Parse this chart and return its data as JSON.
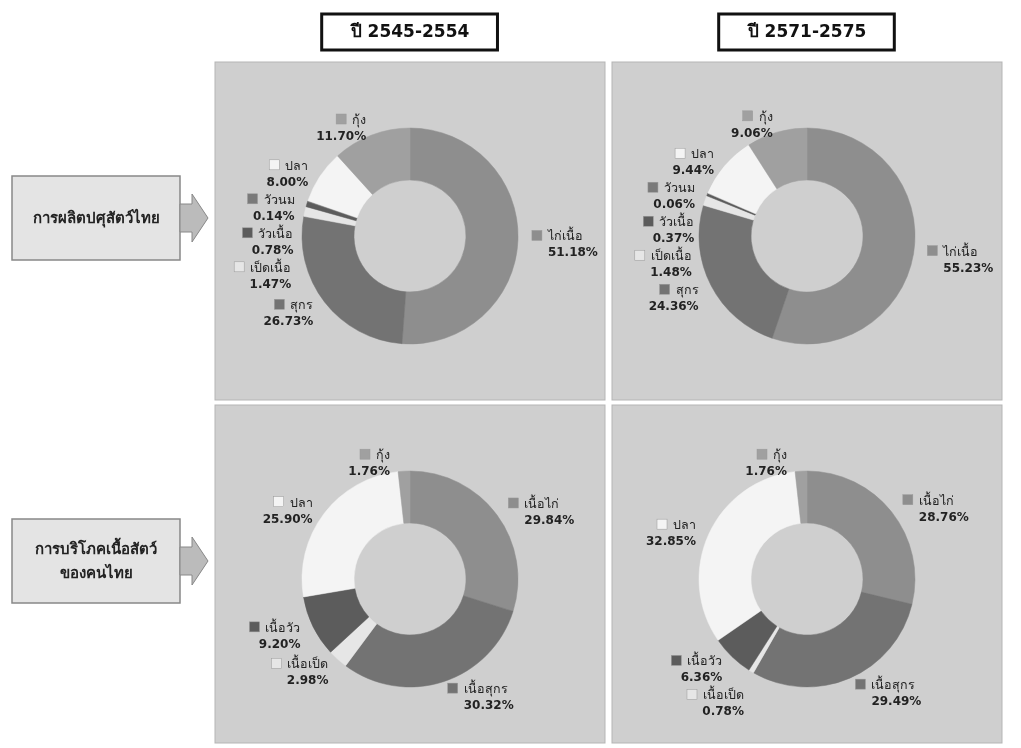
{
  "chart_data": [
    {
      "type": "donut",
      "title": "ปี 2545-2554",
      "ylabel": "การผลิตปศุสัตว์ไทย",
      "categories": [
        "ไก่เนื้อ",
        "สุกร",
        "เป็ดเนื้อ",
        "วัวเนื้อ",
        "วัวนม",
        "ปลา",
        "กุ้ง"
      ],
      "values": [
        51.18,
        26.73,
        1.47,
        0.78,
        0.14,
        8.0,
        11.7
      ],
      "colors": [
        "#8e8e8e",
        "#737373",
        "#e6e6e6",
        "#5c5c5c",
        "#7a7a7a",
        "#f4f4f4",
        "#a0a0a0"
      ],
      "legend": "left",
      "value_labels": [
        "51.18%",
        "26.73%",
        "1.47%",
        "0.78%",
        "0.14%",
        "8.00%",
        "11.70%"
      ]
    },
    {
      "type": "donut",
      "title": "ปี 2571-2575",
      "categories": [
        "ไก่เนื้อ",
        "สุกร",
        "เป็ดเนื้อ",
        "วัวเนื้อ",
        "วัวนม",
        "ปลา",
        "กุ้ง"
      ],
      "values": [
        55.23,
        24.36,
        1.48,
        0.37,
        0.06,
        9.44,
        9.06
      ],
      "colors": [
        "#8e8e8e",
        "#737373",
        "#e6e6e6",
        "#5c5c5c",
        "#7a7a7a",
        "#f4f4f4",
        "#a0a0a0"
      ],
      "legend": "left",
      "value_labels": [
        "55.23%",
        "24.36%",
        "1.48%",
        "0.37%",
        "0.06%",
        "9.44%",
        "9.06%"
      ]
    },
    {
      "type": "donut",
      "ylabel": "การบริโภคเนื้อสัตว์ของคนไทย",
      "categories": [
        "เนื้อไก่",
        "เนื้อสุกร",
        "เนื้อเป็ด",
        "เนื้อวัว",
        "ปลา",
        "กุ้ง"
      ],
      "values": [
        29.84,
        30.32,
        2.98,
        9.2,
        25.9,
        1.76
      ],
      "colors": [
        "#8e8e8e",
        "#737373",
        "#e6e6e6",
        "#5c5c5c",
        "#f4f4f4",
        "#a0a0a0"
      ],
      "legend": "left",
      "value_labels": [
        "29.84%",
        "30.32%",
        "2.98%",
        "9.20%",
        "25.90%",
        "1.76%"
      ]
    },
    {
      "type": "donut",
      "categories": [
        "เนื้อไก่",
        "เนื้อสุกร",
        "เนื้อเป็ด",
        "เนื้อวัว",
        "ปลา",
        "กุ้ง"
      ],
      "values": [
        28.76,
        29.49,
        0.78,
        6.36,
        32.85,
        1.76
      ],
      "colors": [
        "#8e8e8e",
        "#737373",
        "#e6e6e6",
        "#5c5c5c",
        "#f4f4f4",
        "#a0a0a0"
      ],
      "legend": "left",
      "value_labels": [
        "28.76%",
        "29.49%",
        "0.78%",
        "6.36%",
        "32.85%",
        "1.76%"
      ]
    }
  ]
}
